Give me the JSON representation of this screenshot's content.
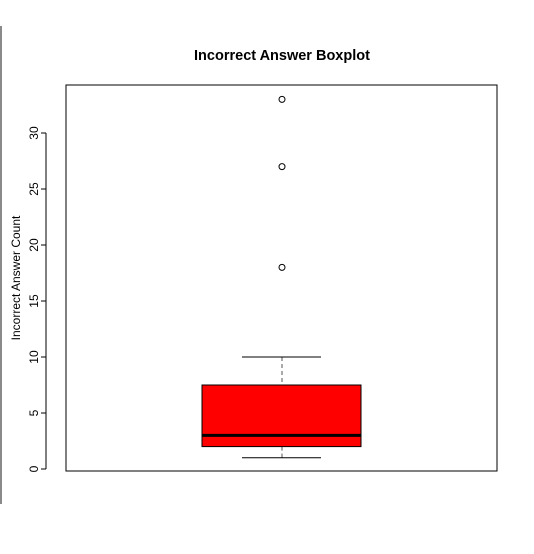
{
  "chart_data": {
    "type": "boxplot",
    "title": "Incorrect Answer Boxplot",
    "xlabel": "",
    "ylabel": "Incorrect Answer Count",
    "ylim": [
      0,
      34
    ],
    "yticks": [
      0,
      5,
      10,
      15,
      20,
      25,
      30
    ],
    "grid": false,
    "box": {
      "whisker_low": 1,
      "q1": 2,
      "median": 3,
      "q3": 7.5,
      "whisker_high": 10,
      "outliers": [
        18,
        27,
        33
      ]
    },
    "colors": {
      "box_fill": "#ff0000",
      "line": "#000000",
      "whisker_dash": "#555555"
    }
  }
}
